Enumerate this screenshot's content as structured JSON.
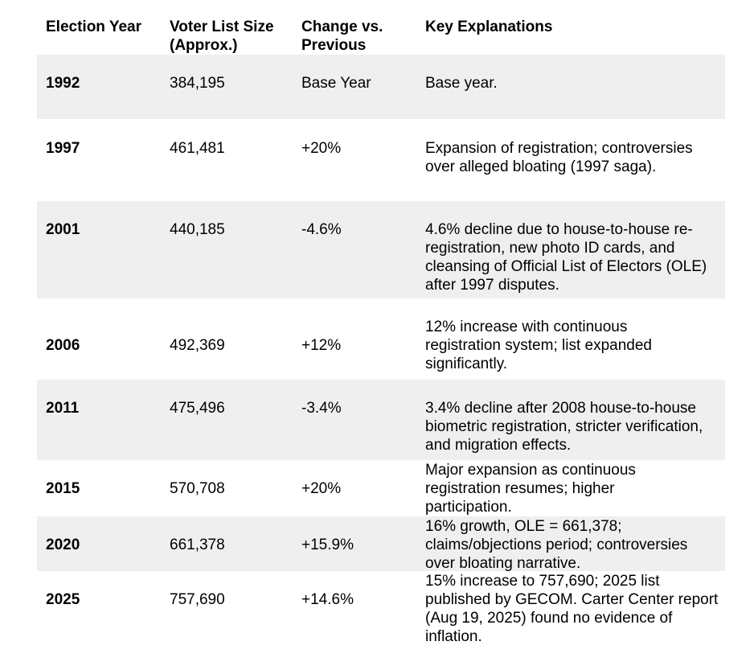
{
  "headers": {
    "year": "Election Year",
    "size": "Voter List Size (Approx.)",
    "change": "Change vs. Previous",
    "explanation": "Key Explanations"
  },
  "rows": [
    {
      "year": "1992",
      "size": "384,195",
      "change": "Base Year",
      "explanation": "Base year."
    },
    {
      "year": "1997",
      "size": "461,481",
      "change": "+20%",
      "explanation": "Expansion of registration; controversies over alleged bloating (1997 saga)."
    },
    {
      "year": "2001",
      "size": "440,185",
      "change": "-4.6%",
      "explanation": "4.6% decline due to house-to-house re-registration, new photo ID cards, and cleansing of Official List of Electors (OLE) after 1997 disputes."
    },
    {
      "year": "2006",
      "size": "492,369",
      "change": "+12%",
      "explanation": "12% increase with continuous registration system; list expanded significantly."
    },
    {
      "year": "2011",
      "size": "475,496",
      "change": "-3.4%",
      "explanation": "3.4% decline after 2008 house-to-house biometric registration, stricter verification, and migration effects."
    },
    {
      "year": "2015",
      "size": "570,708",
      "change": "+20%",
      "explanation": "Major expansion as continuous registration resumes; higher participation."
    },
    {
      "year": "2020",
      "size": "661,378",
      "change": "+15.9%",
      "explanation": "16% growth, OLE = 661,378; claims/objections period; controversies over bloating narrative."
    },
    {
      "year": "2025",
      "size": "757,690",
      "change": "+14.6%",
      "explanation": "15% increase to 757,690; 2025 list published by GECOM. Carter Center report (Aug 19, 2025) found no evidence of inflation."
    }
  ]
}
